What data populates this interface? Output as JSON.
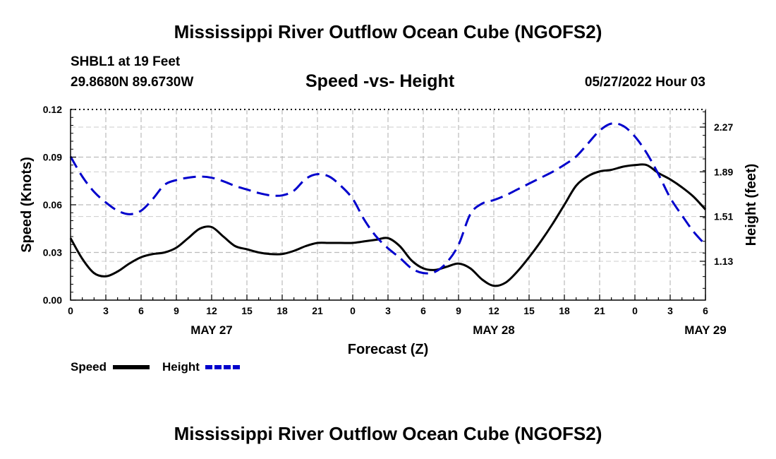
{
  "page": {
    "top_title": "Mississippi River Outflow Ocean Cube (NGOFS2)",
    "bottom_title": "Mississippi River Outflow Ocean Cube (NGOFS2)",
    "station": "SHBL1 at 19 Feet",
    "coords": "29.8680N  89.6730W",
    "subtitle": "Speed -vs- Height",
    "datetime": "05/27/2022 Hour 03"
  },
  "chart_data": {
    "type": "line",
    "title": "Speed -vs- Height",
    "xlabel": "Forecast (Z)",
    "ylabel": "Speed (Knots)",
    "y2label": "Height (feet)",
    "x_tick_labels": [
      "0",
      "3",
      "6",
      "9",
      "12",
      "15",
      "18",
      "21",
      "0",
      "3",
      "6",
      "9",
      "12",
      "15",
      "18",
      "21",
      "0",
      "3",
      "6"
    ],
    "date_labels": [
      {
        "label": "MAY 27",
        "at_hour": 12
      },
      {
        "label": "MAY 28",
        "at_hour": 36
      },
      {
        "label": "MAY 29",
        "at_hour": 54
      }
    ],
    "xlim": [
      0,
      54
    ],
    "ylim": [
      0,
      0.12
    ],
    "y_ticks": [
      "0.00",
      "0.03",
      "0.06",
      "0.09",
      "0.12"
    ],
    "y2lim": [
      0.8,
      2.42
    ],
    "y2_ticks": [
      "1.13",
      "1.51",
      "1.89",
      "2.27"
    ],
    "grid": true,
    "legend": "bottom-left",
    "series": [
      {
        "name": "Speed",
        "axis": "left",
        "color": "#000000",
        "dash": "solid",
        "x": [
          0,
          1,
          2,
          3,
          4,
          5,
          6,
          7,
          8,
          9,
          10,
          11,
          12,
          13,
          14,
          15,
          16,
          17,
          18,
          19,
          20,
          21,
          22,
          23,
          24,
          25,
          26,
          27,
          28,
          29,
          30,
          31,
          32,
          33,
          34,
          35,
          36,
          37,
          38,
          39,
          40,
          41,
          42,
          43,
          44,
          45,
          46,
          47,
          48,
          49,
          50,
          51,
          52,
          53,
          54
        ],
        "values": [
          0.039,
          0.026,
          0.017,
          0.015,
          0.018,
          0.023,
          0.027,
          0.029,
          0.03,
          0.033,
          0.039,
          0.045,
          0.046,
          0.04,
          0.034,
          0.032,
          0.03,
          0.029,
          0.029,
          0.031,
          0.034,
          0.036,
          0.036,
          0.036,
          0.036,
          0.037,
          0.038,
          0.039,
          0.034,
          0.025,
          0.02,
          0.019,
          0.021,
          0.023,
          0.02,
          0.013,
          0.009,
          0.011,
          0.018,
          0.027,
          0.037,
          0.048,
          0.06,
          0.072,
          0.078,
          0.081,
          0.082,
          0.084,
          0.085,
          0.085,
          0.08,
          0.076,
          0.071,
          0.065,
          0.057
        ]
      },
      {
        "name": "Height",
        "axis": "right",
        "color": "#0000cc",
        "dash": "dashed",
        "x": [
          0,
          1,
          2,
          3,
          4,
          5,
          6,
          7,
          8,
          9,
          10,
          11,
          12,
          13,
          14,
          15,
          16,
          17,
          18,
          19,
          20,
          21,
          22,
          23,
          24,
          25,
          26,
          27,
          28,
          29,
          30,
          31,
          32,
          33,
          34,
          35,
          36,
          37,
          38,
          39,
          40,
          41,
          42,
          43,
          44,
          45,
          46,
          47,
          48,
          49,
          50,
          51,
          52,
          53,
          54
        ],
        "values": [
          2.02,
          1.85,
          1.72,
          1.63,
          1.56,
          1.53,
          1.56,
          1.66,
          1.78,
          1.82,
          1.84,
          1.85,
          1.84,
          1.81,
          1.77,
          1.74,
          1.71,
          1.69,
          1.69,
          1.73,
          1.83,
          1.87,
          1.85,
          1.77,
          1.66,
          1.48,
          1.34,
          1.24,
          1.16,
          1.07,
          1.03,
          1.04,
          1.12,
          1.27,
          1.53,
          1.62,
          1.65,
          1.69,
          1.74,
          1.79,
          1.84,
          1.89,
          1.95,
          2.02,
          2.13,
          2.24,
          2.3,
          2.28,
          2.19,
          2.05,
          1.87,
          1.67,
          1.52,
          1.38,
          1.27
        ]
      }
    ]
  }
}
